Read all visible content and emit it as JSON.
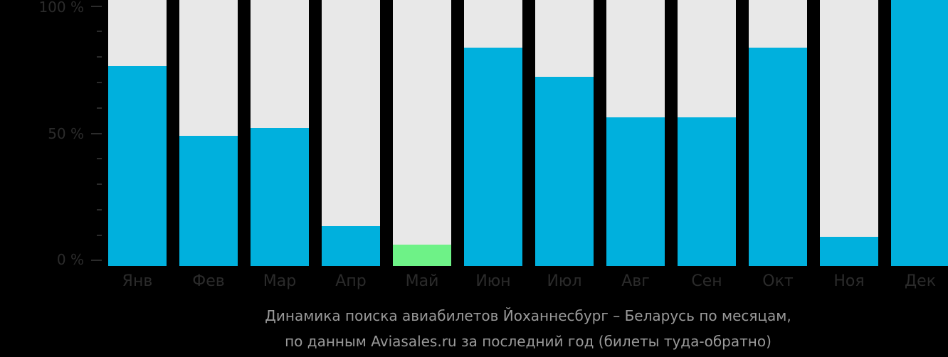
{
  "colors": {
    "background": "#000000",
    "bar_bg": "#e8e8e8",
    "bar_default": "#00b0dd",
    "bar_highlight": "#6ef287",
    "axis_text": "#2b2b2b",
    "caption_text": "#9a9a9a"
  },
  "axis": {
    "y_labels": [
      "100 %",
      "50 %",
      "0 %"
    ]
  },
  "caption": {
    "line1": "Динамика поиска авиабилетов Йоханнесбург – Беларусь по месяцам,",
    "line2": "по данным Aviasales.ru за последний год (билеты туда-обратно)"
  },
  "chart_data": {
    "type": "bar",
    "title": "Динамика поиска авиабилетов Йоханнесбург – Беларусь по месяцам, по данным Aviasales.ru за последний год (билеты туда-обратно)",
    "xlabel": "",
    "ylabel": "",
    "ylim": [
      0,
      100
    ],
    "y_ticks": [
      "0 %",
      "50 %",
      "100 %"
    ],
    "grid": false,
    "legend": null,
    "categories": [
      "Янв",
      "Фев",
      "Мар",
      "Апр",
      "Май",
      "Июн",
      "Июл",
      "Авг",
      "Сен",
      "Окт",
      "Ноя",
      "Дек"
    ],
    "values": [
      75,
      49,
      52,
      15,
      8,
      82,
      71,
      56,
      56,
      82,
      11,
      100
    ],
    "highlight_index": 4,
    "unit": "%"
  }
}
